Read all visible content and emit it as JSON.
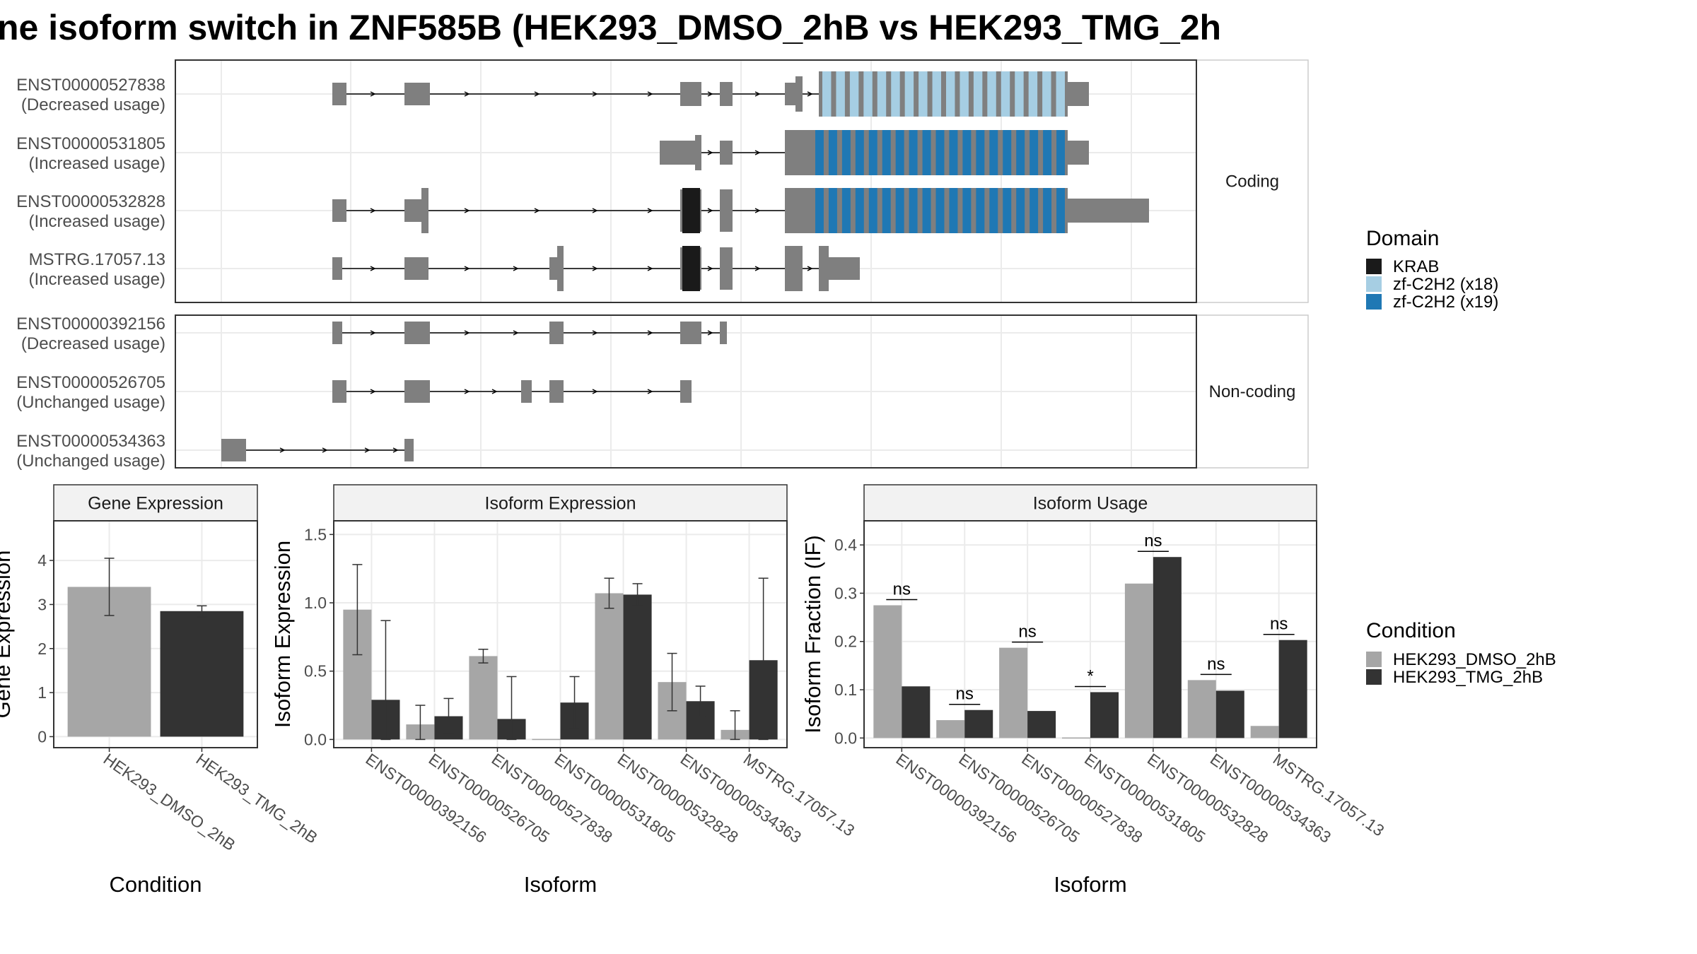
{
  "title": "ne isoform switch in ZNF585B (HEK293_DMSO_2hB vs HEK293_TMG_2h",
  "colors": {
    "exon": "#7f7f7f",
    "krab": "#1a1a1a",
    "zf18": "#a6cee3",
    "zf19": "#1f78b4",
    "dmso": "#a6a6a6",
    "tmg": "#333333",
    "grid": "#ebebeb",
    "strip_bg": "#f2f2f2",
    "panel_border": "#333333"
  },
  "chart_data": [
    {
      "type": "gene-structure",
      "panels": [
        {
          "strip": "Coding",
          "isoforms": [
            {
              "id": "ENST00000527838",
              "usage": "(Decreased usage)"
            },
            {
              "id": "ENST00000531805",
              "usage": "(Increased usage)"
            },
            {
              "id": "ENST00000532828",
              "usage": "(Increased usage)"
            },
            {
              "id": "MSTRG.17057.13",
              "usage": "(Increased usage)"
            }
          ]
        },
        {
          "strip": "Non-coding",
          "isoforms": [
            {
              "id": "ENST00000392156",
              "usage": "(Decreased usage)"
            },
            {
              "id": "ENST00000526705",
              "usage": "(Unchanged usage)"
            },
            {
              "id": "ENST00000534363",
              "usage": "(Unchanged usage)"
            }
          ]
        }
      ],
      "legend": {
        "title": "Domain",
        "entries": [
          "KRAB",
          "zf-C2H2 (x18)",
          "zf-C2H2 (x19)"
        ]
      }
    },
    {
      "type": "bar",
      "strip": "Gene Expression",
      "xlabel": "Condition",
      "ylabel": "Gene Expression",
      "ylim": [
        -0.25,
        4.9
      ],
      "yticks": [
        0,
        1,
        2,
        3,
        4
      ],
      "categories": [
        "HEK293_DMSO_2hB",
        "HEK293_TMG_2hB"
      ],
      "values": [
        3.4,
        2.85
      ],
      "error": [
        [
          2.75,
          4.05
        ],
        [
          2.72,
          2.97
        ]
      ]
    },
    {
      "type": "bar",
      "strip": "Isoform Expression",
      "xlabel": "Isoform",
      "ylabel": "Isoform Expression",
      "ylim": [
        -0.06,
        1.6
      ],
      "yticks": [
        "0.0",
        "0.5",
        "1.0",
        "1.5"
      ],
      "categories": [
        "ENST00000392156",
        "ENST00000526705",
        "ENST00000527838",
        "ENST00000531805",
        "ENST00000532828",
        "ENST00000534363",
        "MSTRG.17057.13"
      ],
      "series": [
        {
          "name": "HEK293_DMSO_2hB",
          "values": [
            0.95,
            0.11,
            0.61,
            0.0,
            1.07,
            0.42,
            0.07
          ],
          "error": [
            [
              0.62,
              1.28
            ],
            [
              0.0,
              0.25
            ],
            [
              0.56,
              0.66
            ],
            [
              0.0,
              0.0
            ],
            [
              0.96,
              1.18
            ],
            [
              0.21,
              0.63
            ],
            [
              0.0,
              0.21
            ]
          ]
        },
        {
          "name": "HEK293_TMG_2hB",
          "values": [
            0.29,
            0.17,
            0.15,
            0.27,
            1.06,
            0.28,
            0.58
          ],
          "error": [
            [
              0.0,
              0.87
            ],
            [
              0.04,
              0.3
            ],
            [
              0.0,
              0.46
            ],
            [
              0.08,
              0.46
            ],
            [
              0.98,
              1.14
            ],
            [
              0.17,
              0.39
            ],
            [
              0.0,
              1.18
            ]
          ]
        }
      ]
    },
    {
      "type": "bar",
      "strip": "Isoform Usage",
      "xlabel": "Isoform",
      "ylabel": "Isoform Fraction (IF)",
      "ylim": [
        -0.02,
        0.45
      ],
      "yticks": [
        "0.0",
        "0.1",
        "0.2",
        "0.3",
        "0.4"
      ],
      "categories": [
        "ENST00000392156",
        "ENST00000526705",
        "ENST00000527838",
        "ENST00000531805",
        "ENST00000532828",
        "ENST00000534363",
        "MSTRG.17057.13"
      ],
      "series": [
        {
          "name": "HEK293_DMSO_2hB",
          "values": [
            0.275,
            0.037,
            0.187,
            0.0,
            0.32,
            0.12,
            0.025
          ]
        },
        {
          "name": "HEK293_TMG_2hB",
          "values": [
            0.107,
            0.058,
            0.056,
            0.095,
            0.375,
            0.098,
            0.203
          ]
        }
      ],
      "significance": [
        "ns",
        "ns",
        "ns",
        "*",
        "ns",
        "ns",
        "ns"
      ]
    }
  ],
  "condition_legend": {
    "title": "Condition",
    "entries": [
      "HEK293_DMSO_2hB",
      "HEK293_TMG_2hB"
    ]
  }
}
